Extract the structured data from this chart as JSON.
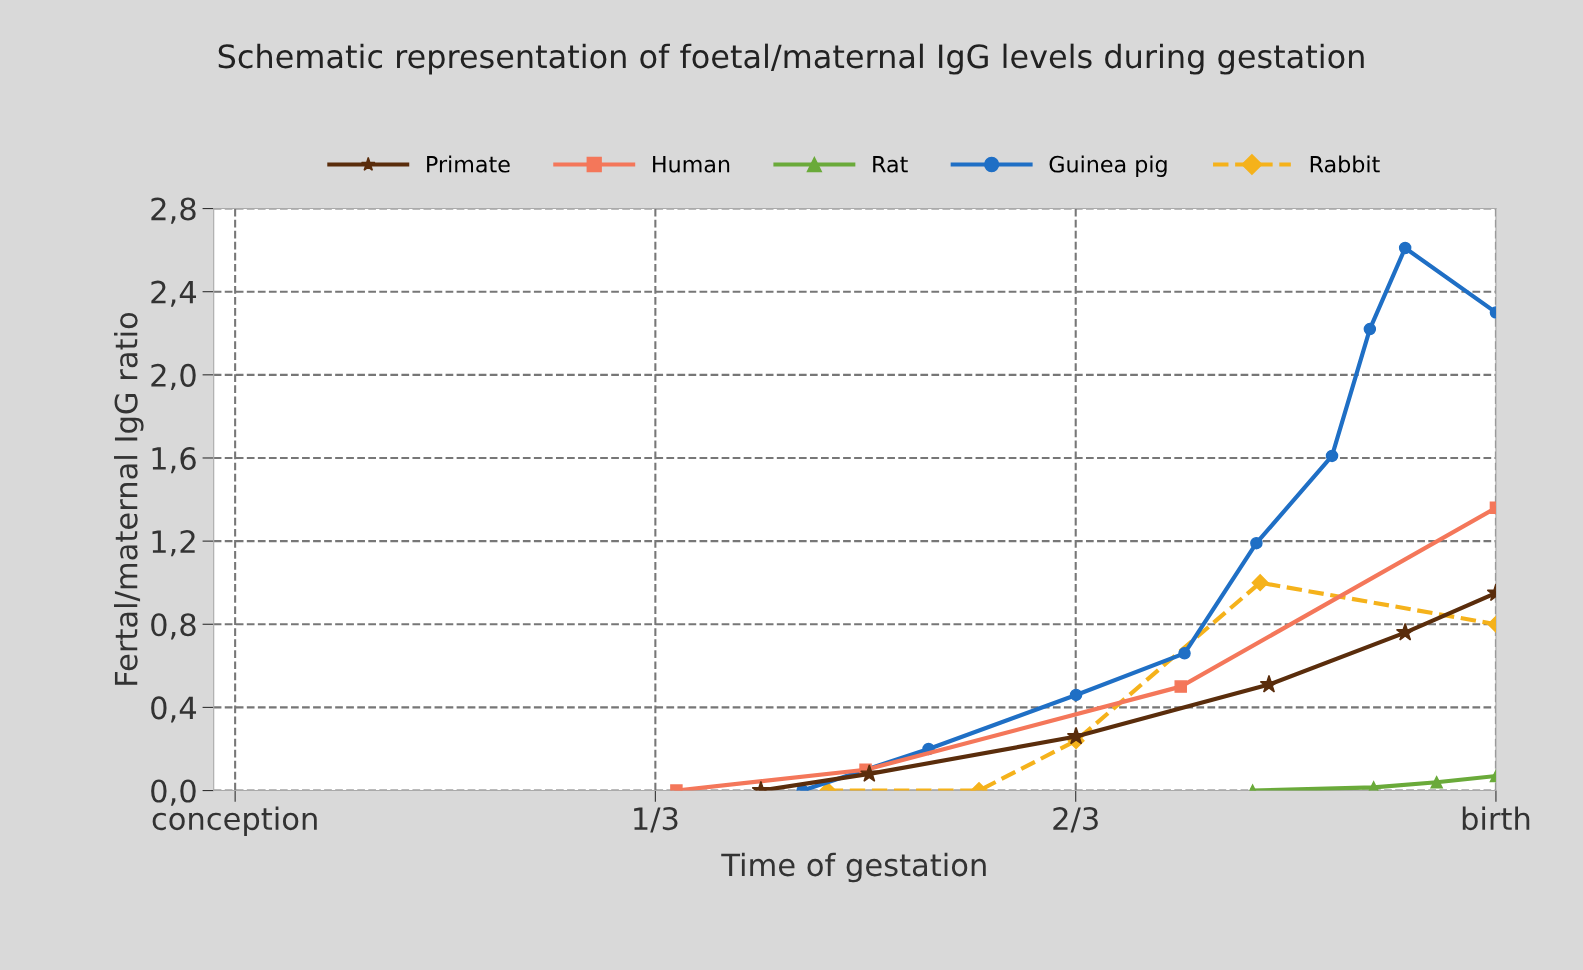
{
  "chart_data": {
    "type": "line",
    "title": "Schematic representation of foetal/maternal IgG levels during gestation",
    "xlabel": "Time of gestation",
    "ylabel": "Fertal/maternal IgG ratio",
    "xlim": [
      -0.017,
      1
    ],
    "ylim": [
      0,
      2.8
    ],
    "xticks": [
      {
        "value": 0,
        "label": "conception"
      },
      {
        "value": 0.3333,
        "label": "1/3"
      },
      {
        "value": 0.6667,
        "label": "2/3"
      },
      {
        "value": 1,
        "label": "birth"
      }
    ],
    "yticks": [
      {
        "value": 0,
        "label": "0,0"
      },
      {
        "value": 0.4,
        "label": "0,4"
      },
      {
        "value": 0.8,
        "label": "0,8"
      },
      {
        "value": 1.2,
        "label": "1,2"
      },
      {
        "value": 1.6,
        "label": "1,6"
      },
      {
        "value": 2.0,
        "label": "2,0"
      },
      {
        "value": 2.4,
        "label": "2,4"
      },
      {
        "value": 2.8,
        "label": "2,8"
      }
    ],
    "grid": true,
    "legend": "top",
    "series": [
      {
        "name": "Primate",
        "color": "#5a2d0c",
        "marker": "star",
        "line_style": "solid",
        "x": [
          0.417,
          0.503,
          0.667,
          0.82,
          0.928,
          1.0
        ],
        "values": [
          0.0,
          0.08,
          0.26,
          0.51,
          0.76,
          0.95
        ]
      },
      {
        "name": "Human",
        "color": "#f4775a",
        "marker": "square",
        "line_style": "solid",
        "x": [
          0.35,
          0.5,
          0.75,
          1.0
        ],
        "values": [
          0.0,
          0.1,
          0.5,
          1.36
        ]
      },
      {
        "name": "Rat",
        "color": "#6aaa3a",
        "marker": "triangle",
        "line_style": "solid",
        "x": [
          0.807,
          0.903,
          0.953,
          1.0
        ],
        "values": [
          0.0,
          0.015,
          0.04,
          0.07
        ]
      },
      {
        "name": "Guinea pig",
        "color": "#1f6fc5",
        "marker": "circle",
        "line_style": "solid",
        "x": [
          0.45,
          0.55,
          0.667,
          0.753,
          0.81,
          0.87,
          0.9,
          0.928,
          1.0
        ],
        "values": [
          0.0,
          0.2,
          0.46,
          0.66,
          1.19,
          1.61,
          2.22,
          2.61,
          2.3
        ]
      },
      {
        "name": "Rabbit",
        "color": "#f5b21b",
        "marker": "diamond",
        "line_style": "dashed",
        "x": [
          0.47,
          0.59,
          0.667,
          0.813,
          1.0
        ],
        "values": [
          0.0,
          0.0,
          0.24,
          1.0,
          0.8
        ]
      }
    ]
  }
}
